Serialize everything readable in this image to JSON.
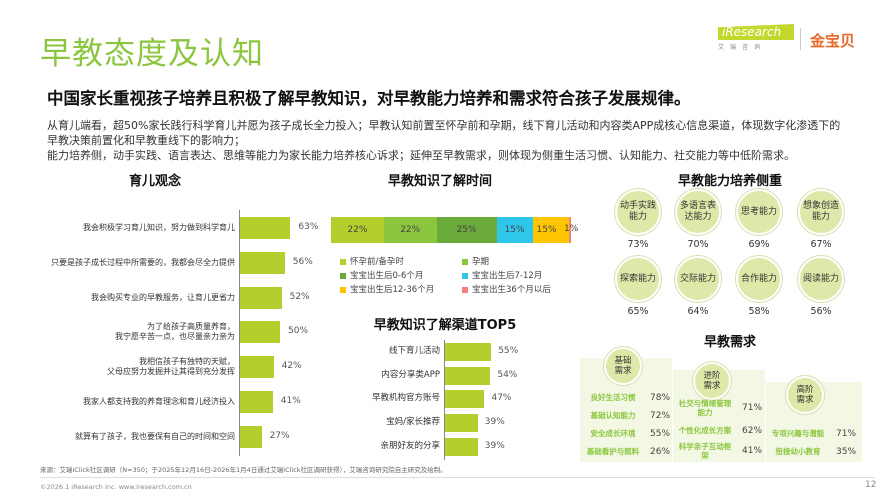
{
  "title": "早教态度及认知",
  "logos": {
    "iresearch": "iResearch",
    "iresearch_sub": "艾瑞咨询",
    "jinbaobei": "金宝贝"
  },
  "headline": "中国家长重视孩子培养且积极了解早教知识，对早教能力培养和需求符合孩子发展规律。",
  "paragraphs": [
    "从育儿端看，超50%家长践行科学育儿并愿为孩子成长全力投入；早教认知前置至怀孕前和孕期，线下育儿活动和内容类APP成核心信息渠道，体现数字化渗透下的",
    "早教决策前置化和早教重线下的影响力；",
    "能力培养侧，动手实践、语言表达、思维等能力为家长能力培养核心诉求；延伸至早教需求，则体现为侧重生活习惯、认知能力、社交能力等中低阶需求。"
  ],
  "colors": {
    "brand_green": "#8cc63f",
    "bar_green": "#b3cf2e",
    "circle_fill": "#dde9a8"
  },
  "chart_data": [
    {
      "type": "bar",
      "title": "育儿观念",
      "orientation": "horizontal",
      "categories": [
        "我会积极学习育儿知识，努力做到科学育儿",
        "只要是孩子成长过程中所需要的，我都会尽全力提供",
        "我会购买专业的早教服务，让育儿更省力",
        "为了给孩子高质量养育，\n我宁愿辛苦一点，也尽量亲力亲为",
        "我相信孩子有独特的天赋，\n父母应努力发掘并让其得到充分发挥",
        "我家人都支持我的养育理念和育儿经济投入",
        "就算有了孩子，我也要保有自己的时间和空间"
      ],
      "values": [
        63,
        56,
        52,
        50,
        42,
        41,
        27
      ],
      "labels": [
        "63%",
        "56%",
        "52%",
        "50%",
        "42%",
        "41%",
        "27%"
      ]
    },
    {
      "type": "bar",
      "stacked": true,
      "title": "早教知识了解时间",
      "series": [
        {
          "name": "怀孕前/备孕时",
          "value": 22,
          "label": "22%",
          "color": "#b3cf2e"
        },
        {
          "name": "孕期",
          "value": 22,
          "label": "22%",
          "color": "#8cc63f"
        },
        {
          "name": "宝宝出生后0-6个月",
          "value": 25,
          "label": "25%",
          "color": "#6aaa3a"
        },
        {
          "name": "宝宝出生后7-12月",
          "value": 15,
          "label": "15%",
          "color": "#2ec7ea"
        },
        {
          "name": "宝宝出生后12-36个月",
          "value": 15,
          "label": "15%",
          "color": "#ffc600"
        },
        {
          "name": "宝宝出生36个月以后",
          "value": 1,
          "label": "1%",
          "color": "#f08080"
        }
      ],
      "legend": "bottom"
    },
    {
      "type": "bar",
      "title": "早教知识了解渠道TOP5",
      "orientation": "horizontal",
      "categories": [
        "线下育儿活动",
        "内容分享类APP",
        "早教机构官方账号",
        "宝妈/家长推荐",
        "亲朋好友的分享"
      ],
      "values": [
        55,
        54,
        47,
        39,
        39
      ],
      "labels": [
        "55%",
        "54%",
        "47%",
        "39%",
        "39%"
      ]
    }
  ],
  "abilities": {
    "title": "早教能力培养侧重",
    "items": [
      {
        "name": "动手实践\n能力",
        "pct": "73%"
      },
      {
        "name": "多语言表\n达能力",
        "pct": "70%"
      },
      {
        "name": "思考能力",
        "pct": "69%"
      },
      {
        "name": "想象创造\n能力",
        "pct": "67%"
      },
      {
        "name": "探索能力",
        "pct": "65%"
      },
      {
        "name": "交际能力",
        "pct": "64%"
      },
      {
        "name": "合作能力",
        "pct": "58%"
      },
      {
        "name": "阅读能力",
        "pct": "56%"
      }
    ]
  },
  "demand": {
    "title": "早教需求",
    "groups": [
      {
        "name": "基础\n需求",
        "items": [
          {
            "name": "良好生活习惯",
            "pct": "78%"
          },
          {
            "name": "基础认知能力",
            "pct": "72%"
          },
          {
            "name": "安全成长环境",
            "pct": "55%"
          },
          {
            "name": "基础看护与照料",
            "pct": "26%"
          }
        ]
      },
      {
        "name": "进阶\n需求",
        "items": [
          {
            "name": "社交与情绪管理\n能力",
            "pct": "71%"
          },
          {
            "name": "个性化成长方案",
            "pct": "62%"
          },
          {
            "name": "科学亲子互动框\n架",
            "pct": "41%"
          }
        ]
      },
      {
        "name": "高阶\n需求",
        "items": [
          {
            "name": "专项兴趣与潜能",
            "pct": "71%"
          },
          {
            "name": "衔接幼小教育",
            "pct": "35%"
          }
        ]
      }
    ]
  },
  "footer": {
    "source": "来源：艾瑞iClick社区调研（N=350；于2025年12月16日-2026年1月4日通过艾瑞iClick社区调研获得），艾瑞咨询研究院自主研究及绘制。",
    "copyright": "©2026.1 iResearch Inc. www.iresearch.com.cn",
    "page": "12"
  }
}
